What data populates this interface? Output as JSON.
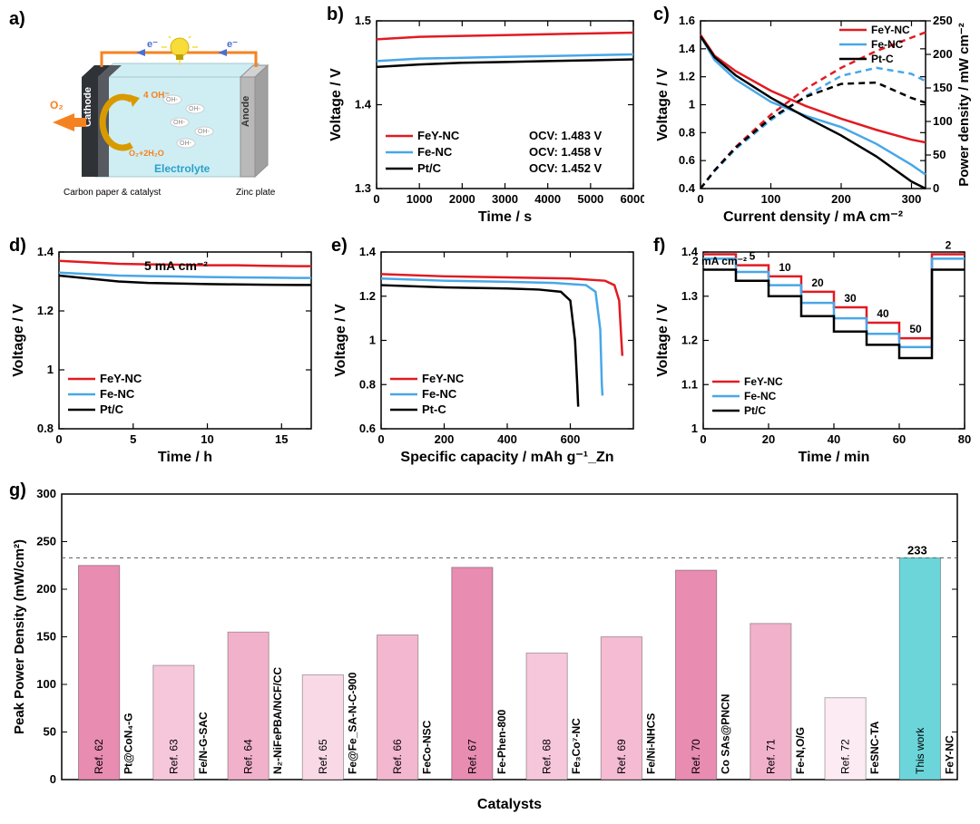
{
  "colors": {
    "fey": "#e11b22",
    "fe": "#48a7e8",
    "pt": "#000000",
    "cathode_dark": "#2f3237",
    "cathode_light": "#575a60",
    "electrolyte": "#cfeef4",
    "anode": "#b9b9b9",
    "bulb_yellow": "#f7dc3a",
    "wire": "#f58220",
    "arrow": "#f58220",
    "eminus": "#4a6fd1"
  },
  "a": {
    "label": "a)",
    "cathode_caption": "Carbon paper & catalyst",
    "anode_caption": "Zinc plate",
    "side_cathode": "Cathode",
    "side_anode": "Anode",
    "electrolyte_word": "Electrolyte",
    "o2": "O₂",
    "eminus": "e⁻",
    "oh_text": "4 OH⁻",
    "rxn_text": "O₂+2H₂O"
  },
  "b": {
    "label": "b)",
    "xlabel": "Time / s",
    "ylabel": "Voltage / V",
    "xlim": [
      0,
      6000
    ],
    "xticks": [
      0,
      1000,
      2000,
      3000,
      4000,
      5000,
      6000
    ],
    "ylim": [
      1.3,
      1.5
    ],
    "yticks": [
      1.3,
      1.4,
      1.5
    ],
    "series": [
      {
        "name": "FeY-NC",
        "color": "#e11b22",
        "y": [
          1.478,
          1.481,
          1.482,
          1.483,
          1.484,
          1.485,
          1.486
        ],
        "legend": "OCV: 1.483 V"
      },
      {
        "name": "Fe-NC",
        "color": "#48a7e8",
        "y": [
          1.452,
          1.455,
          1.456,
          1.457,
          1.458,
          1.459,
          1.46
        ],
        "legend": "OCV: 1.458 V"
      },
      {
        "name": "Pt/C",
        "color": "#000000",
        "y": [
          1.445,
          1.448,
          1.45,
          1.451,
          1.452,
          1.453,
          1.454
        ],
        "legend": "OCV: 1.452 V"
      }
    ]
  },
  "c": {
    "label": "c)",
    "xlabel": "Current density / mA cm⁻²",
    "ylabel": "Voltage / V",
    "ylabel2": "Power density / mW cm⁻²",
    "xlim": [
      0,
      320
    ],
    "xticks": [
      0,
      100,
      200,
      300
    ],
    "ylim": [
      0.4,
      1.6
    ],
    "yticks": [
      0.4,
      0.6,
      0.8,
      1.0,
      1.2,
      1.4,
      1.6
    ],
    "ylim2": [
      0,
      250
    ],
    "yticks2": [
      0,
      50,
      100,
      150,
      200,
      250
    ],
    "x_samples": [
      0,
      20,
      50,
      100,
      150,
      200,
      250,
      300,
      320
    ],
    "voltage": {
      "FeY-NC": [
        1.5,
        1.35,
        1.24,
        1.1,
        0.99,
        0.9,
        0.82,
        0.75,
        0.73
      ],
      "Fe-NC": [
        1.49,
        1.32,
        1.18,
        1.02,
        0.92,
        0.84,
        0.72,
        0.57,
        0.5
      ],
      "Pt-C": [
        1.49,
        1.34,
        1.21,
        1.05,
        0.91,
        0.78,
        0.63,
        0.45,
        0.4
      ]
    },
    "power": {
      "FeY-NC": [
        0,
        27,
        62,
        110,
        149,
        180,
        205,
        225,
        233
      ],
      "Fe-NC": [
        0,
        26,
        59,
        102,
        138,
        168,
        180,
        171,
        160
      ],
      "Pt-C": [
        0,
        27,
        61,
        105,
        137,
        156,
        158,
        135,
        128
      ]
    },
    "legend": [
      "FeY-NC",
      "Fe-NC",
      "Pt-C"
    ],
    "colors": {
      "FeY-NC": "#e11b22",
      "Fe-NC": "#48a7e8",
      "Pt-C": "#000000"
    }
  },
  "d": {
    "label": "d)",
    "xlabel": "Time / h",
    "ylabel": "Voltage / V",
    "annotation": "5 mA cm⁻²",
    "xlim": [
      0,
      17
    ],
    "xticks": [
      0,
      5,
      10,
      15
    ],
    "ylim": [
      0.8,
      1.4
    ],
    "yticks": [
      0.8,
      1.0,
      1.2,
      1.4
    ],
    "x_samples": [
      0,
      2,
      4,
      6,
      8,
      10,
      12,
      14,
      16,
      17
    ],
    "series": {
      "FeY-NC": [
        1.37,
        1.365,
        1.36,
        1.358,
        1.357,
        1.355,
        1.355,
        1.353,
        1.352,
        1.352
      ],
      "Fe-NC": [
        1.33,
        1.325,
        1.32,
        1.318,
        1.317,
        1.315,
        1.314,
        1.313,
        1.312,
        1.312
      ],
      "Pt/C": [
        1.32,
        1.31,
        1.3,
        1.295,
        1.293,
        1.291,
        1.29,
        1.289,
        1.288,
        1.288
      ]
    },
    "legend": [
      "FeY-NC",
      "Fe-NC",
      "Pt/C"
    ],
    "colors": {
      "FeY-NC": "#e11b22",
      "Fe-NC": "#48a7e8",
      "Pt/C": "#000000"
    }
  },
  "e": {
    "label": "e)",
    "xlabel": "Specific capacity / mAh g⁻¹_Zn",
    "ylabel": "Voltage / V",
    "xlim": [
      0,
      800
    ],
    "xticks": [
      0,
      200,
      400,
      600
    ],
    "ylim": [
      0.6,
      1.4
    ],
    "yticks": [
      0.6,
      0.8,
      1.0,
      1.2,
      1.4
    ],
    "series": {
      "FeY-NC": [
        [
          0,
          1.3
        ],
        [
          200,
          1.29
        ],
        [
          400,
          1.285
        ],
        [
          600,
          1.28
        ],
        [
          710,
          1.27
        ],
        [
          740,
          1.25
        ],
        [
          755,
          1.18
        ],
        [
          762,
          1.0
        ],
        [
          765,
          0.93
        ]
      ],
      "Fe-NC": [
        [
          0,
          1.28
        ],
        [
          200,
          1.27
        ],
        [
          400,
          1.265
        ],
        [
          550,
          1.26
        ],
        [
          650,
          1.25
        ],
        [
          680,
          1.22
        ],
        [
          695,
          1.05
        ],
        [
          700,
          0.8
        ],
        [
          702,
          0.75
        ]
      ],
      "Pt-C": [
        [
          0,
          1.25
        ],
        [
          200,
          1.24
        ],
        [
          400,
          1.235
        ],
        [
          500,
          1.23
        ],
        [
          570,
          1.22
        ],
        [
          600,
          1.18
        ],
        [
          615,
          1.0
        ],
        [
          622,
          0.8
        ],
        [
          625,
          0.7
        ]
      ]
    },
    "legend": [
      "FeY-NC",
      "Fe-NC",
      "Pt-C"
    ],
    "colors": {
      "FeY-NC": "#e11b22",
      "Fe-NC": "#48a7e8",
      "Pt-C": "#000000"
    }
  },
  "f": {
    "label": "f)",
    "xlabel": "Time / min",
    "ylabel": "Voltage / V",
    "xlim": [
      0,
      80
    ],
    "xticks": [
      0,
      20,
      40,
      60,
      80
    ],
    "ylim": [
      1.0,
      1.4
    ],
    "yticks": [
      1.0,
      1.1,
      1.2,
      1.3,
      1.4
    ],
    "step_labels": [
      "2 mA cm⁻²",
      "5",
      "10",
      "20",
      "30",
      "40",
      "50",
      "2"
    ],
    "step_x": [
      5,
      15,
      25,
      35,
      45,
      55,
      65,
      75
    ],
    "steps": {
      "FeY-NC": [
        1.395,
        1.37,
        1.345,
        1.31,
        1.275,
        1.24,
        1.205,
        1.395
      ],
      "Fe-NC": [
        1.385,
        1.355,
        1.325,
        1.285,
        1.25,
        1.215,
        1.185,
        1.385
      ],
      "Pt/C": [
        1.36,
        1.335,
        1.3,
        1.255,
        1.22,
        1.19,
        1.16,
        1.36
      ]
    },
    "legend": [
      "FeY-NC",
      "Fe-NC",
      "Pt/C"
    ],
    "colors": {
      "FeY-NC": "#e11b22",
      "Fe-NC": "#48a7e8",
      "Pt/C": "#000000"
    }
  },
  "g": {
    "label": "g)",
    "xlabel": "Catalysts",
    "ylabel": "Peak Power Density (mW/cm²)",
    "ylim": [
      0,
      300
    ],
    "yticks": [
      0,
      50,
      100,
      150,
      200,
      250,
      300
    ],
    "dashed_value": 233,
    "dashed_label": "233",
    "bars": [
      {
        "ref": "Ref. 62",
        "name": "Pt@CoN₄-G",
        "value": 225,
        "color": "#e88cb1"
      },
      {
        "ref": "Ref. 63",
        "name": "Fe/N-G-SAC",
        "value": 120,
        "color": "#f6c7db"
      },
      {
        "ref": "Ref. 64",
        "name": "N₂-NiFePBA/NCF/CC",
        "value": 155,
        "color": "#f2b1cb"
      },
      {
        "ref": "Ref. 65",
        "name": "Fe@Fe_SA-N-C-900",
        "value": 110,
        "color": "#f9d9e6"
      },
      {
        "ref": "Ref. 66",
        "name": "FeCo-NSC",
        "value": 152,
        "color": "#f3b7cf"
      },
      {
        "ref": "Ref. 67",
        "name": "Fe-Phen-800",
        "value": 223,
        "color": "#e88cb1"
      },
      {
        "ref": "Ref. 68",
        "name": "Fe₃Co⁷-NC",
        "value": 133,
        "color": "#f6c7db"
      },
      {
        "ref": "Ref. 69",
        "name": "Fe/Ni-NHCS",
        "value": 150,
        "color": "#f4bbd2"
      },
      {
        "ref": "Ref. 70",
        "name": "Co SAs@PNCN",
        "value": 220,
        "color": "#e88cb1"
      },
      {
        "ref": "Ref. 71",
        "name": "Fe-N,O/G",
        "value": 164,
        "color": "#f2b1cb"
      },
      {
        "ref": "Ref. 72",
        "name": "FeSNC-TA",
        "value": 86,
        "color": "#fcebf2"
      },
      {
        "ref": "This work",
        "name": "FeY-NC",
        "value": 233,
        "color": "#6cd5da"
      }
    ]
  }
}
